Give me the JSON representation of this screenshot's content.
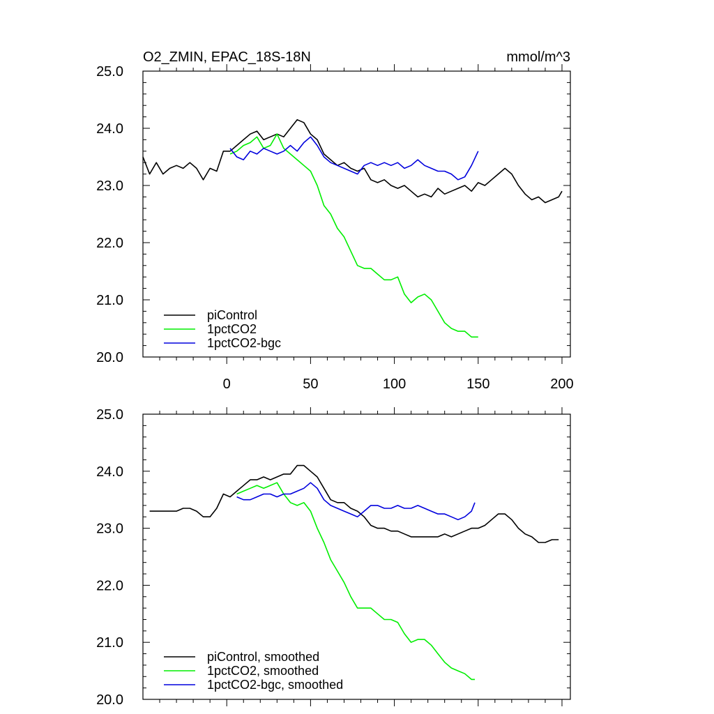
{
  "chart_data": [
    {
      "type": "line",
      "title_left": "O2_ZMIN, EPAC_18S-18N",
      "title_right": "mmol/m^3",
      "xlim": [
        -50,
        205
      ],
      "ylim": [
        20.0,
        25.0
      ],
      "x_ticks": [
        0,
        50,
        100,
        150,
        200
      ],
      "x_tick_labels": [
        "0",
        "50",
        "100",
        "150",
        "200"
      ],
      "y_ticks": [
        20.0,
        21.0,
        22.0,
        23.0,
        24.0,
        25.0
      ],
      "y_tick_labels": [
        "20.0",
        "21.0",
        "22.0",
        "23.0",
        "24.0",
        "25.0"
      ],
      "legend_position": "bottom-left",
      "series": [
        {
          "name": "piControl",
          "color": "#000000",
          "x": [
            -50,
            -46,
            -42,
            -38,
            -34,
            -30,
            -26,
            -22,
            -18,
            -14,
            -10,
            -6,
            -2,
            2,
            6,
            10,
            14,
            18,
            22,
            26,
            30,
            34,
            38,
            42,
            46,
            50,
            54,
            58,
            62,
            66,
            70,
            74,
            78,
            82,
            86,
            90,
            94,
            98,
            102,
            106,
            110,
            114,
            118,
            122,
            126,
            130,
            134,
            138,
            142,
            146,
            150,
            154,
            158,
            162,
            166,
            170,
            174,
            178,
            182,
            186,
            190,
            194,
            198,
            200
          ],
          "values": [
            23.5,
            23.2,
            23.4,
            23.2,
            23.3,
            23.35,
            23.3,
            23.4,
            23.3,
            23.1,
            23.3,
            23.25,
            23.6,
            23.6,
            23.7,
            23.8,
            23.9,
            23.95,
            23.8,
            23.85,
            23.9,
            23.85,
            24.0,
            24.15,
            24.1,
            23.9,
            23.8,
            23.55,
            23.45,
            23.35,
            23.4,
            23.3,
            23.25,
            23.3,
            23.1,
            23.05,
            23.1,
            23.0,
            22.95,
            23.0,
            22.9,
            22.8,
            22.85,
            22.8,
            22.95,
            22.85,
            22.9,
            22.95,
            23.0,
            22.9,
            23.05,
            23.0,
            23.1,
            23.2,
            23.3,
            23.2,
            23.0,
            22.85,
            22.75,
            22.8,
            22.7,
            22.75,
            22.8,
            22.9
          ]
        },
        {
          "name": "1pctCO2",
          "color": "#00ee00",
          "x": [
            2,
            6,
            10,
            14,
            18,
            22,
            26,
            30,
            34,
            38,
            42,
            46,
            50,
            54,
            58,
            62,
            66,
            70,
            74,
            78,
            82,
            86,
            90,
            94,
            98,
            102,
            106,
            110,
            114,
            118,
            122,
            126,
            130,
            134,
            138,
            142,
            146,
            150
          ],
          "values": [
            23.55,
            23.6,
            23.7,
            23.75,
            23.85,
            23.65,
            23.7,
            23.9,
            23.65,
            23.55,
            23.45,
            23.35,
            23.25,
            23.0,
            22.65,
            22.5,
            22.25,
            22.1,
            21.85,
            21.6,
            21.55,
            21.55,
            21.45,
            21.35,
            21.35,
            21.4,
            21.1,
            20.95,
            21.05,
            21.1,
            21.0,
            20.8,
            20.6,
            20.5,
            20.45,
            20.45,
            20.35,
            20.35
          ]
        },
        {
          "name": "1pctCO2-bgc",
          "color": "#0000dd",
          "x": [
            2,
            6,
            10,
            14,
            18,
            22,
            26,
            30,
            34,
            38,
            42,
            46,
            50,
            54,
            58,
            62,
            66,
            70,
            74,
            78,
            82,
            86,
            90,
            94,
            98,
            102,
            106,
            110,
            114,
            118,
            122,
            126,
            130,
            134,
            138,
            142,
            146,
            150
          ],
          "values": [
            23.65,
            23.5,
            23.45,
            23.6,
            23.55,
            23.65,
            23.6,
            23.55,
            23.6,
            23.7,
            23.6,
            23.75,
            23.85,
            23.7,
            23.5,
            23.4,
            23.35,
            23.3,
            23.25,
            23.2,
            23.35,
            23.4,
            23.35,
            23.4,
            23.35,
            23.4,
            23.3,
            23.35,
            23.45,
            23.35,
            23.3,
            23.25,
            23.25,
            23.2,
            23.1,
            23.15,
            23.35,
            23.6
          ]
        }
      ]
    },
    {
      "type": "line",
      "xlim": [
        -50,
        205
      ],
      "ylim": [
        20.0,
        25.0
      ],
      "x_ticks": [
        0,
        50,
        100,
        150,
        200
      ],
      "y_ticks": [
        20.0,
        21.0,
        22.0,
        23.0,
        24.0,
        25.0
      ],
      "y_tick_labels": [
        "20.0",
        "21.0",
        "22.0",
        "23.0",
        "24.0",
        "25.0"
      ],
      "legend_position": "bottom-left",
      "series": [
        {
          "name": "piControl, smoothed",
          "color": "#000000",
          "x": [
            -46,
            -42,
            -38,
            -34,
            -30,
            -26,
            -22,
            -18,
            -14,
            -10,
            -6,
            -2,
            2,
            6,
            10,
            14,
            18,
            22,
            26,
            30,
            34,
            38,
            42,
            46,
            50,
            54,
            58,
            62,
            66,
            70,
            74,
            78,
            82,
            86,
            90,
            94,
            98,
            102,
            106,
            110,
            114,
            118,
            122,
            126,
            130,
            134,
            138,
            142,
            146,
            150,
            154,
            158,
            162,
            166,
            170,
            174,
            178,
            182,
            186,
            190,
            194,
            198
          ],
          "values": [
            23.3,
            23.3,
            23.3,
            23.3,
            23.3,
            23.35,
            23.35,
            23.3,
            23.2,
            23.2,
            23.35,
            23.6,
            23.55,
            23.65,
            23.75,
            23.85,
            23.85,
            23.9,
            23.85,
            23.9,
            23.95,
            23.95,
            24.1,
            24.1,
            24.0,
            23.9,
            23.7,
            23.5,
            23.45,
            23.45,
            23.35,
            23.3,
            23.2,
            23.05,
            23.0,
            23.0,
            22.95,
            22.95,
            22.9,
            22.85,
            22.85,
            22.85,
            22.85,
            22.85,
            22.9,
            22.85,
            22.9,
            22.95,
            23.0,
            23.0,
            23.05,
            23.15,
            23.25,
            23.25,
            23.15,
            23.0,
            22.9,
            22.85,
            22.75,
            22.75,
            22.8,
            22.8
          ]
        },
        {
          "name": "1pctCO2, smoothed",
          "color": "#00ee00",
          "x": [
            6,
            10,
            14,
            18,
            22,
            26,
            30,
            34,
            38,
            42,
            46,
            50,
            54,
            58,
            62,
            66,
            70,
            74,
            78,
            82,
            86,
            90,
            94,
            98,
            102,
            106,
            110,
            114,
            118,
            122,
            126,
            130,
            134,
            138,
            142,
            146,
            148
          ],
          "values": [
            23.6,
            23.65,
            23.7,
            23.75,
            23.7,
            23.75,
            23.8,
            23.6,
            23.45,
            23.4,
            23.45,
            23.3,
            23.0,
            22.75,
            22.45,
            22.25,
            22.05,
            21.8,
            21.6,
            21.6,
            21.6,
            21.5,
            21.4,
            21.4,
            21.35,
            21.15,
            21.0,
            21.05,
            21.05,
            20.95,
            20.8,
            20.65,
            20.55,
            20.5,
            20.45,
            20.35,
            20.35
          ]
        },
        {
          "name": "1pctCO2-bgc, smoothed",
          "color": "#0000dd",
          "x": [
            6,
            10,
            14,
            18,
            22,
            26,
            30,
            34,
            38,
            42,
            46,
            50,
            54,
            58,
            62,
            66,
            70,
            74,
            78,
            82,
            86,
            90,
            94,
            98,
            102,
            106,
            110,
            114,
            118,
            122,
            126,
            130,
            134,
            138,
            142,
            146,
            148
          ],
          "values": [
            23.55,
            23.5,
            23.5,
            23.55,
            23.6,
            23.6,
            23.55,
            23.6,
            23.6,
            23.65,
            23.7,
            23.8,
            23.7,
            23.5,
            23.4,
            23.35,
            23.3,
            23.25,
            23.2,
            23.3,
            23.4,
            23.4,
            23.35,
            23.35,
            23.4,
            23.35,
            23.35,
            23.4,
            23.35,
            23.3,
            23.25,
            23.25,
            23.2,
            23.15,
            23.2,
            23.3,
            23.45
          ]
        }
      ]
    }
  ]
}
